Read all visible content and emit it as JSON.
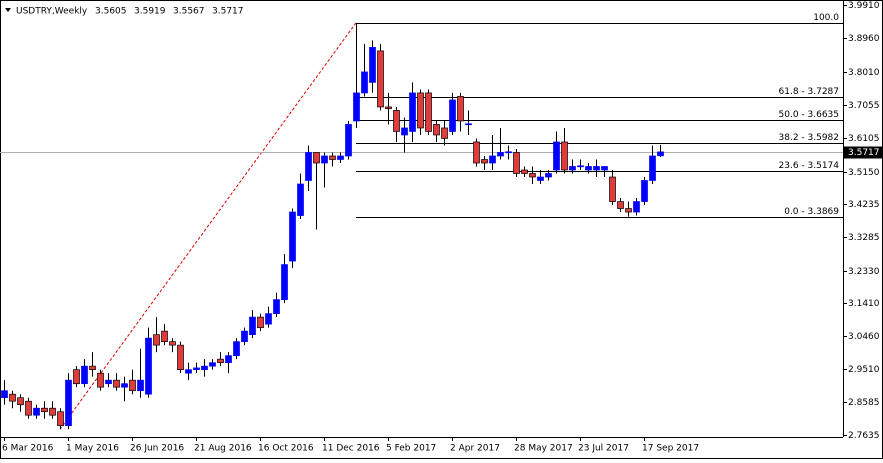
{
  "chart_data": {
    "type": "candlestick",
    "title": "USDTRY,Weekly",
    "quote": [
      3.5605,
      3.5919,
      3.5567,
      3.5717
    ],
    "categories": [
      "6 Mar 2016",
      null,
      null,
      null,
      null,
      null,
      null,
      null,
      "1 May 2016",
      null,
      null,
      null,
      null,
      null,
      null,
      null,
      "26 Jun 2016",
      null,
      null,
      null,
      null,
      null,
      null,
      null,
      "21 Aug 2016",
      null,
      null,
      null,
      null,
      null,
      null,
      null,
      "16 Oct 2016",
      null,
      null,
      null,
      null,
      null,
      null,
      null,
      "11 Dec 2016",
      null,
      null,
      null,
      null,
      null,
      null,
      null,
      "5 Feb 2017",
      null,
      null,
      null,
      null,
      null,
      null,
      null,
      "2 Apr 2017",
      null,
      null,
      null,
      null,
      null,
      null,
      null,
      "28 May 2017",
      null,
      null,
      null,
      null,
      null,
      null,
      null,
      "23 Jul 2017",
      null,
      null,
      null,
      null,
      null,
      null,
      null,
      "17 Sep 2017",
      null,
      null
    ],
    "open": [
      2.87,
      2.88,
      2.87,
      2.86,
      2.82,
      2.84,
      2.84,
      2.83,
      2.79,
      2.95,
      2.91,
      2.96,
      2.94,
      2.91,
      2.92,
      2.9,
      2.92,
      2.89,
      2.88,
      3.05,
      3.06,
      3.03,
      3.02,
      2.94,
      2.95,
      2.95,
      2.96,
      2.98,
      2.97,
      2.99,
      3.03,
      3.05,
      3.1,
      3.08,
      3.11,
      3.15,
      3.26,
      3.39,
      3.49,
      3.57,
      3.54,
      3.56,
      3.55,
      3.56,
      3.66,
      3.74,
      3.77,
      3.86,
      3.7,
      3.69,
      3.62,
      3.63,
      3.74,
      3.74,
      3.65,
      3.64,
      3.63,
      3.73,
      3.65,
      3.6,
      3.55,
      3.54,
      3.56,
      3.57,
      3.57,
      3.52,
      3.51,
      3.49,
      3.5,
      3.52,
      3.6,
      3.52,
      3.53,
      3.52,
      3.52,
      3.52,
      3.5,
      3.43,
      3.41,
      3.4,
      3.43,
      3.49,
      3.5605
    ],
    "high": [
      2.92,
      2.89,
      2.88,
      2.87,
      2.85,
      2.86,
      2.86,
      2.84,
      2.94,
      2.96,
      2.98,
      3.0,
      2.95,
      2.94,
      2.94,
      2.93,
      2.95,
      3.01,
      3.07,
      3.1,
      3.08,
      3.04,
      3.03,
      2.97,
      2.97,
      2.98,
      2.98,
      3.0,
      3.0,
      3.04,
      3.07,
      3.12,
      3.11,
      3.13,
      3.17,
      3.28,
      3.41,
      3.51,
      3.59,
      3.57,
      3.57,
      3.57,
      3.57,
      3.66,
      3.94,
      3.88,
      3.89,
      3.88,
      3.74,
      3.7,
      3.67,
      3.77,
      3.75,
      3.75,
      3.66,
      3.66,
      3.74,
      3.74,
      3.69,
      3.61,
      3.56,
      3.62,
      3.64,
      3.59,
      3.58,
      3.53,
      3.53,
      3.52,
      3.52,
      3.63,
      3.64,
      3.55,
      3.55,
      3.54,
      3.55,
      3.53,
      3.52,
      3.44,
      3.43,
      3.44,
      3.5,
      3.59,
      3.5919
    ],
    "low": [
      2.85,
      2.84,
      2.83,
      2.81,
      2.81,
      2.81,
      2.81,
      2.78,
      2.78,
      2.9,
      2.9,
      2.93,
      2.89,
      2.9,
      2.89,
      2.86,
      2.88,
      2.87,
      2.87,
      3.0,
      3.02,
      3.0,
      2.94,
      2.92,
      2.94,
      2.93,
      2.95,
      2.96,
      2.94,
      2.98,
      3.02,
      3.04,
      3.06,
      3.07,
      3.1,
      3.14,
      3.24,
      3.38,
      3.46,
      3.35,
      3.47,
      3.53,
      3.54,
      3.55,
      3.64,
      3.73,
      3.74,
      3.69,
      3.65,
      3.6,
      3.57,
      3.6,
      3.62,
      3.62,
      3.6,
      3.59,
      3.62,
      3.63,
      3.62,
      3.53,
      3.52,
      3.52,
      3.55,
      3.55,
      3.5,
      3.5,
      3.48,
      3.48,
      3.49,
      3.51,
      3.51,
      3.51,
      3.52,
      3.51,
      3.5,
      3.5,
      3.42,
      3.4,
      3.3869,
      3.39,
      3.42,
      3.48,
      3.5567
    ],
    "close": [
      2.89,
      2.86,
      2.85,
      2.82,
      2.84,
      2.83,
      2.82,
      2.79,
      2.92,
      2.91,
      2.96,
      2.95,
      2.9,
      2.92,
      2.9,
      2.91,
      2.89,
      2.92,
      3.04,
      3.02,
      3.03,
      3.02,
      2.95,
      2.95,
      2.955,
      2.96,
      2.97,
      2.97,
      2.99,
      3.03,
      3.06,
      3.1,
      3.07,
      3.11,
      3.15,
      3.25,
      3.4,
      3.48,
      3.57,
      3.54,
      3.56,
      3.55,
      3.56,
      3.65,
      3.74,
      3.8,
      3.87,
      3.7,
      3.695,
      3.63,
      3.64,
      3.74,
      3.64,
      3.63,
      3.62,
      3.61,
      3.72,
      3.66,
      3.652,
      3.54,
      3.54,
      3.56,
      3.57,
      3.572,
      3.51,
      3.51,
      3.5,
      3.5,
      3.51,
      3.6,
      3.52,
      3.53,
      3.532,
      3.53,
      3.53,
      3.53,
      3.43,
      3.41,
      3.4,
      3.43,
      3.49,
      3.56,
      3.5717
    ],
    "bull_color": "#0000ff",
    "bear_color": "#e03c3c",
    "ylim": [
      2.7578,
      4.0053
    ],
    "yticks": [
      {
        "value": 3.991,
        "label": "3.9910"
      },
      {
        "value": 3.896,
        "label": "3.8960"
      },
      {
        "value": 3.801,
        "label": "3.8010"
      },
      3.7055,
      3.6105,
      {
        "value": 3.515,
        "label": "3.5150"
      },
      3.4235,
      3.3285,
      {
        "value": 3.233,
        "label": "3.2330"
      },
      {
        "value": 3.141,
        "label": "3.1410"
      },
      {
        "value": 3.046,
        "label": "3.0460"
      },
      {
        "value": 2.951,
        "label": "2.9510"
      },
      2.8585,
      2.7635
    ],
    "last": 3.5717,
    "fib_levels": [
      {
        "value": 3.94,
        "label": "100.0"
      },
      {
        "value": 3.7287,
        "label": "61.8 - 3.7287"
      },
      {
        "value": 3.6635,
        "label": "50.0 - 3.6635"
      },
      {
        "value": 3.5982,
        "label": "38.2 - 3.5982"
      },
      {
        "value": 3.5174,
        "label": "23.6 - 3.5174"
      },
      {
        "value": 3.3869,
        "label": "0.0 - 3.3869"
      }
    ]
  }
}
